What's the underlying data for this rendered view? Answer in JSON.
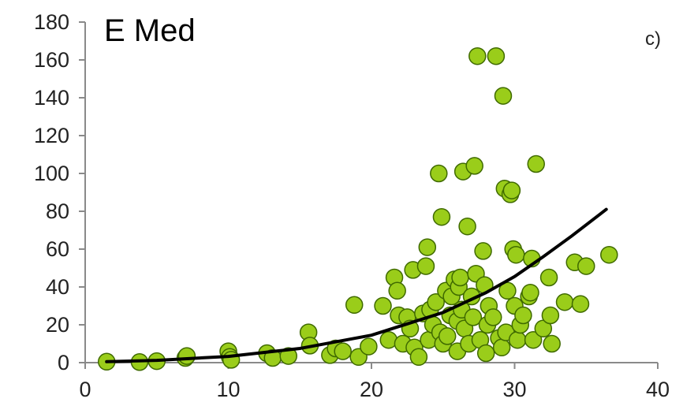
{
  "chart_data": {
    "type": "scatter",
    "title": "E Med",
    "panel_label": "c)",
    "xlabel": "",
    "ylabel": "",
    "xlim": [
      0,
      40
    ],
    "ylim": [
      0,
      180
    ],
    "x_ticks": [
      0,
      10,
      20,
      30,
      40
    ],
    "y_ticks": [
      0,
      20,
      40,
      60,
      80,
      100,
      120,
      140,
      160,
      180
    ],
    "grid": false,
    "legend": "none",
    "marker_fill": "#9acd1a",
    "marker_stroke": "#3f6a00",
    "trend_color": "#000000",
    "series": [
      {
        "points": [
          [
            1.5,
            0.5
          ],
          [
            3.8,
            0.3
          ],
          [
            5.0,
            0.8
          ],
          [
            7.0,
            2.5
          ],
          [
            7.1,
            3.5
          ],
          [
            10.0,
            6.0
          ],
          [
            10.1,
            3.0
          ],
          [
            10.2,
            1.5
          ],
          [
            12.7,
            5.0
          ],
          [
            13.1,
            2.5
          ],
          [
            14.2,
            3.5
          ],
          [
            15.6,
            16.0
          ],
          [
            15.7,
            9.0
          ],
          [
            17.1,
            4.0
          ],
          [
            17.5,
            7.5
          ],
          [
            18.0,
            6.0
          ],
          [
            18.8,
            30.5
          ],
          [
            19.1,
            3.0
          ],
          [
            19.8,
            8.5
          ],
          [
            20.8,
            30.0
          ],
          [
            21.2,
            12.0
          ],
          [
            21.6,
            45.0
          ],
          [
            21.8,
            38.0
          ],
          [
            21.9,
            25.0
          ],
          [
            22.2,
            10.0
          ],
          [
            22.5,
            24.0
          ],
          [
            22.7,
            18.0
          ],
          [
            22.9,
            49.0
          ],
          [
            23.0,
            8.0
          ],
          [
            23.3,
            3.0
          ],
          [
            23.6,
            26.0
          ],
          [
            23.8,
            51.0
          ],
          [
            23.9,
            61.0
          ],
          [
            24.0,
            12.0
          ],
          [
            24.1,
            28.0
          ],
          [
            24.3,
            20.0
          ],
          [
            24.5,
            32.0
          ],
          [
            24.7,
            100.0
          ],
          [
            24.8,
            16.0
          ],
          [
            24.9,
            77.0
          ],
          [
            25.0,
            10.0
          ],
          [
            25.2,
            38.0
          ],
          [
            25.3,
            14.0
          ],
          [
            25.5,
            25.0
          ],
          [
            25.6,
            35.0
          ],
          [
            25.8,
            44.0
          ],
          [
            26.0,
            22.0
          ],
          [
            26.0,
            6.0
          ],
          [
            26.1,
            40.0
          ],
          [
            26.2,
            45.0
          ],
          [
            26.3,
            28.0
          ],
          [
            26.4,
            101.0
          ],
          [
            26.5,
            18.0
          ],
          [
            26.7,
            72.0
          ],
          [
            26.8,
            10.0
          ],
          [
            27.0,
            35.0
          ],
          [
            27.1,
            24.0
          ],
          [
            27.2,
            104.0
          ],
          [
            27.3,
            47.0
          ],
          [
            27.4,
            162.0
          ],
          [
            27.6,
            12.0
          ],
          [
            27.8,
            59.0
          ],
          [
            27.9,
            41.0
          ],
          [
            28.0,
            5.0
          ],
          [
            28.1,
            20.0
          ],
          [
            28.2,
            30.0
          ],
          [
            28.5,
            24.0
          ],
          [
            28.7,
            162.0
          ],
          [
            28.9,
            13.0
          ],
          [
            29.1,
            8.0
          ],
          [
            29.2,
            141.0
          ],
          [
            29.3,
            92.0
          ],
          [
            29.4,
            16.0
          ],
          [
            29.5,
            38.0
          ],
          [
            29.7,
            89.0
          ],
          [
            29.8,
            91.0
          ],
          [
            29.9,
            60.0
          ],
          [
            30.0,
            30.0
          ],
          [
            30.1,
            57.0
          ],
          [
            30.2,
            12.0
          ],
          [
            30.4,
            20.0
          ],
          [
            30.6,
            25.0
          ],
          [
            31.0,
            35.0
          ],
          [
            31.1,
            37.0
          ],
          [
            31.2,
            55.0
          ],
          [
            31.3,
            12.0
          ],
          [
            31.5,
            105.0
          ],
          [
            32.0,
            18.0
          ],
          [
            32.4,
            45.0
          ],
          [
            32.5,
            25.0
          ],
          [
            32.6,
            10.0
          ],
          [
            33.5,
            32.0
          ],
          [
            34.2,
            53.0
          ],
          [
            34.6,
            31.0
          ],
          [
            35.0,
            51.0
          ],
          [
            36.6,
            57.0
          ]
        ]
      }
    ],
    "trendline": {
      "type": "power-like",
      "points": [
        [
          1.5,
          0.5
        ],
        [
          5,
          1.2
        ],
        [
          10,
          3.3
        ],
        [
          15,
          7.5
        ],
        [
          20,
          14.5
        ],
        [
          25,
          26.5
        ],
        [
          28,
          37.0
        ],
        [
          30,
          45.5
        ],
        [
          32,
          56.0
        ],
        [
          34,
          67.0
        ],
        [
          36.4,
          81.0
        ]
      ]
    }
  }
}
